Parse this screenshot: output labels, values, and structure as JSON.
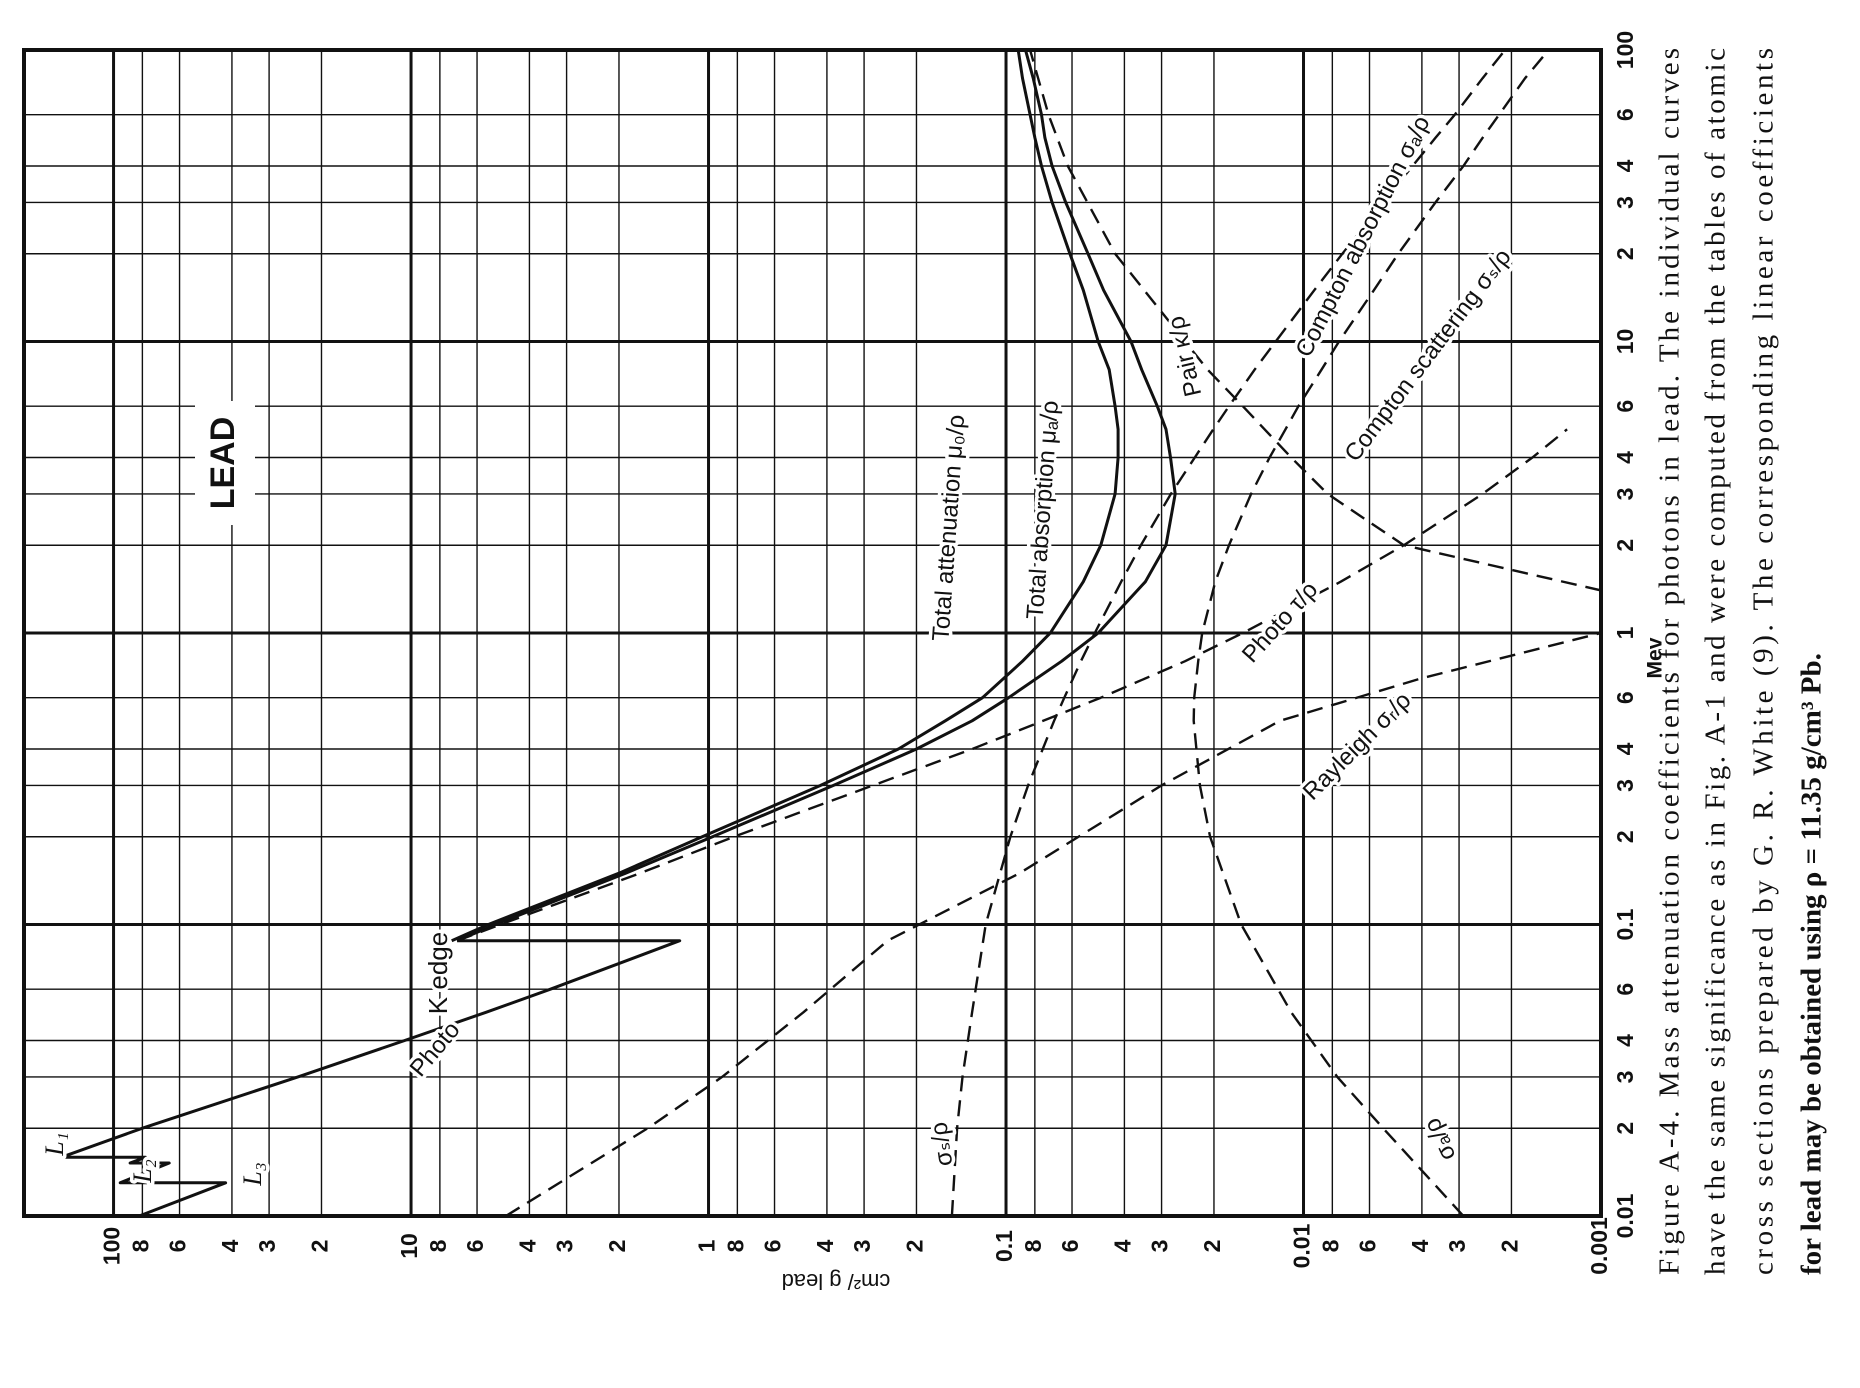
{
  "chart_data": {
    "type": "line",
    "xscale": "log",
    "yscale": "log",
    "xlabel": "Mev",
    "ylabel": "cm²/ g lead",
    "xlim": [
      0.01,
      100
    ],
    "ylim": [
      0.001,
      200
    ],
    "grid": true,
    "xticks": [
      0.01,
      {
        "value": 0.02,
        "label": "2"
      },
      {
        "value": 0.03,
        "label": "3"
      },
      {
        "value": 0.04,
        "label": "4"
      },
      {
        "value": 0.06,
        "label": "6"
      },
      0.1,
      {
        "value": 0.2,
        "label": "2"
      },
      {
        "value": 0.3,
        "label": "3"
      },
      {
        "value": 0.4,
        "label": "4"
      },
      {
        "value": 0.6,
        "label": "6"
      },
      1,
      2,
      3,
      4,
      6,
      10,
      {
        "value": 20,
        "label": "2"
      },
      {
        "value": 30,
        "label": "3"
      },
      {
        "value": 40,
        "label": "4"
      },
      {
        "value": 60,
        "label": "6"
      },
      100
    ],
    "yticks": [
      100,
      {
        "value": 80,
        "label": "8"
      },
      {
        "value": 60,
        "label": "6"
      },
      {
        "value": 40,
        "label": "4"
      },
      {
        "value": 30,
        "label": "3"
      },
      {
        "value": 20,
        "label": "2"
      },
      10,
      8,
      6,
      4,
      3,
      2,
      1,
      {
        "value": 0.8,
        "label": "8"
      },
      {
        "value": 0.6,
        "label": "6"
      },
      {
        "value": 0.4,
        "label": "4"
      },
      {
        "value": 0.3,
        "label": "3"
      },
      {
        "value": 0.2,
        "label": "2"
      },
      0.1,
      {
        "value": 0.08,
        "label": "8"
      },
      {
        "value": 0.06,
        "label": "6"
      },
      {
        "value": 0.04,
        "label": "4"
      },
      {
        "value": 0.03,
        "label": "3"
      },
      {
        "value": 0.02,
        "label": "2"
      },
      0.01,
      {
        "value": 0.008,
        "label": "8"
      },
      {
        "value": 0.006,
        "label": "6"
      },
      {
        "value": 0.004,
        "label": "4"
      },
      {
        "value": 0.003,
        "label": "3"
      },
      {
        "value": 0.002,
        "label": "2"
      },
      0.001
    ],
    "series": [
      {
        "name": "Total attenuation μ₀/ρ",
        "color": "#111111",
        "dash": false,
        "x": [
          0.088,
          0.1,
          0.15,
          0.2,
          0.3,
          0.4,
          0.5,
          0.6,
          0.8,
          1,
          1.5,
          2,
          3,
          4,
          5,
          6,
          8,
          10,
          15,
          20,
          30,
          40,
          50,
          60,
          80,
          100
        ],
        "values": [
          7.3,
          5.5,
          2.0,
          1.05,
          0.42,
          0.23,
          0.16,
          0.12,
          0.088,
          0.071,
          0.055,
          0.048,
          0.043,
          0.042,
          0.042,
          0.043,
          0.045,
          0.049,
          0.055,
          0.061,
          0.07,
          0.076,
          0.08,
          0.083,
          0.088,
          0.091
        ]
      },
      {
        "name": "Total absorption μₐ/ρ",
        "color": "#111111",
        "dash": false,
        "x": [
          0.088,
          0.1,
          0.15,
          0.2,
          0.3,
          0.4,
          0.5,
          0.6,
          0.8,
          1,
          1.5,
          2,
          3,
          4,
          5,
          6,
          8,
          10,
          15,
          20,
          30,
          40,
          50,
          60,
          80,
          100
        ],
        "values": [
          7.0,
          5.2,
          1.9,
          0.97,
          0.38,
          0.2,
          0.13,
          0.098,
          0.065,
          0.049,
          0.034,
          0.029,
          0.027,
          0.028,
          0.029,
          0.031,
          0.035,
          0.038,
          0.047,
          0.053,
          0.063,
          0.07,
          0.074,
          0.076,
          0.081,
          0.086
        ]
      },
      {
        "name": "Photo",
        "color": "#111111",
        "dash": false,
        "x": [
          0.01,
          0.013,
          0.013,
          0.0152,
          0.0152,
          0.0159,
          0.0159,
          0.02,
          0.03,
          0.04,
          0.05,
          0.06,
          0.08,
          0.088,
          0.088
        ],
        "values": [
          82,
          42,
          95,
          65,
          88,
          78,
          150,
          80,
          24,
          10.5,
          5.6,
          3.4,
          1.6,
          1.25,
          7.0
        ]
      },
      {
        "name": "Photo τ/ρ",
        "color": "#111111",
        "dash": true,
        "x": [
          0.088,
          0.1,
          0.15,
          0.2,
          0.3,
          0.4,
          0.5,
          0.6,
          0.8,
          1,
          1.5,
          2,
          3,
          4,
          5
        ],
        "values": [
          7.0,
          5.0,
          1.7,
          0.82,
          0.28,
          0.13,
          0.075,
          0.048,
          0.025,
          0.016,
          0.0075,
          0.0046,
          0.0025,
          0.0017,
          0.0013
        ]
      },
      {
        "name": "Compton scattering σₛ/ρ",
        "color": "#111111",
        "dash": true,
        "x": [
          0.01,
          0.02,
          0.03,
          0.05,
          0.1,
          0.2,
          0.3,
          0.5,
          0.6,
          0.8,
          1,
          1.5,
          2,
          3,
          4,
          5,
          6,
          8,
          10,
          15,
          20,
          30,
          40,
          50,
          60,
          80,
          100
        ],
        "values": [
          0.152,
          0.146,
          0.14,
          0.13,
          0.117,
          0.0967,
          0.0843,
          0.0689,
          0.0637,
          0.056,
          0.0503,
          0.041,
          0.0352,
          0.0279,
          0.0232,
          0.0201,
          0.0178,
          0.0146,
          0.0124,
          0.0092,
          0.0074,
          0.0054,
          0.0043,
          0.0036,
          0.0031,
          0.0025,
          0.0021
        ]
      },
      {
        "name": "Compton absorption σₐ/ρ",
        "color": "#111111",
        "dash": true,
        "x": [
          0.01,
          0.02,
          0.03,
          0.05,
          0.1,
          0.2,
          0.3,
          0.5,
          0.6,
          0.8,
          1,
          1.5,
          2,
          3,
          4,
          5,
          6,
          8,
          10,
          15,
          20,
          30,
          40,
          50,
          60,
          80,
          100
        ],
        "values": [
          0.0029,
          0.0054,
          0.0077,
          0.011,
          0.0162,
          0.0206,
          0.0223,
          0.0234,
          0.0233,
          0.0226,
          0.0219,
          0.0198,
          0.0178,
          0.015,
          0.013,
          0.0115,
          0.0104,
          0.0087,
          0.0076,
          0.0058,
          0.0048,
          0.0036,
          0.0029,
          0.0025,
          0.0022,
          0.0018,
          0.0015
        ]
      },
      {
        "name": "Rayleigh σᵣ/ρ",
        "color": "#111111",
        "dash": true,
        "x": [
          0.01,
          0.02,
          0.03,
          0.05,
          0.088,
          0.15,
          0.3,
          0.5,
          0.7,
          1
        ],
        "values": [
          4.8,
          1.6,
          0.9,
          0.48,
          0.25,
          0.09,
          0.03,
          0.012,
          0.004,
          0.001
        ]
      },
      {
        "name": "Pair κ/ρ",
        "color": "#111111",
        "dash": true,
        "x": [
          1.4,
          2,
          3,
          4,
          6,
          8,
          10,
          20,
          40,
          60,
          100
        ],
        "values": [
          0.001,
          0.0046,
          0.0083,
          0.011,
          0.016,
          0.021,
          0.025,
          0.043,
          0.062,
          0.072,
          0.083
        ]
      }
    ],
    "annotations": [
      "LEAD",
      "K edge",
      "σₛ/ρ",
      "σₐ/ρ",
      "L₁",
      "L₂",
      "L₃"
    ],
    "caption": [
      "Figure A-4. Mass attenuation coefficients for photons in lead. The individual curves",
      "have the same significance as in Fig. A-1 and were computed from the tables of atomic",
      "cross sections prepared by G. R. White (9). The corresponding linear coefficients",
      "for lead may be obtained using ρ = 11.35 g/cm³ Pb."
    ]
  }
}
